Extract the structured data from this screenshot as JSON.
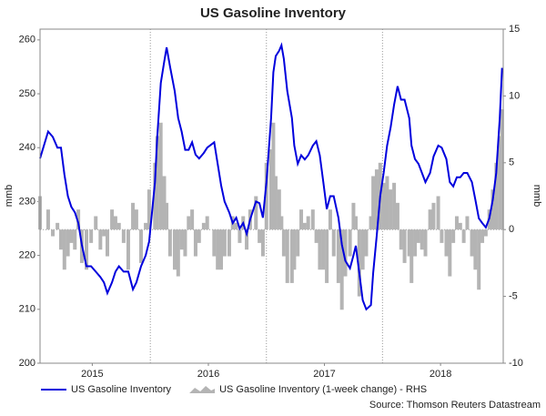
{
  "chart_data": {
    "type": "line_bar_dual",
    "title": "US Gasoline Inventory",
    "ylabel": "mmb",
    "y2label": "mmb",
    "source": "Source: Thomson Reuters Datastream",
    "x": [
      2015.05,
      2015.12,
      2015.16,
      2015.2,
      2015.23,
      2015.26,
      2015.29,
      2015.32,
      2015.35,
      2015.38,
      2015.41,
      2015.45,
      2015.49,
      2015.53,
      2015.57,
      2015.6,
      2015.63,
      2015.67,
      2015.7,
      2015.73,
      2015.77,
      2015.81,
      2015.85,
      2015.88,
      2015.92,
      2015.96,
      2015.99,
      2016.04,
      2016.06,
      2016.09,
      2016.12,
      2016.14,
      2016.17,
      2016.21,
      2016.24,
      2016.27,
      2016.3,
      2016.33,
      2016.36,
      2016.39,
      2016.42,
      2016.46,
      2016.49,
      2016.55,
      2016.58,
      2016.61,
      2016.64,
      2016.68,
      2016.71,
      2016.74,
      2016.77,
      2016.8,
      2016.83,
      2016.86,
      2016.91,
      2016.94,
      2016.97,
      2017.0,
      2017.04,
      2017.06,
      2017.08,
      2017.11,
      2017.13,
      2017.15,
      2017.18,
      2017.22,
      2017.24,
      2017.27,
      2017.3,
      2017.33,
      2017.36,
      2017.4,
      2017.43,
      2017.46,
      2017.49,
      2017.52,
      2017.55,
      2017.58,
      2017.62,
      2017.65,
      2017.68,
      2017.72,
      2017.75,
      2017.77,
      2017.8,
      2017.83,
      2017.86,
      2017.9,
      2017.92,
      2017.95,
      2017.98,
      2018.01,
      2018.04,
      2018.07,
      2018.1,
      2018.13,
      2018.16,
      2018.19,
      2018.23,
      2018.25,
      2018.28,
      2018.31,
      2018.34,
      2018.37,
      2018.41,
      2018.44,
      2018.48,
      2018.51,
      2018.55,
      2018.58,
      2018.61,
      2018.64,
      2018.67,
      2018.7,
      2018.73,
      2018.77,
      2018.8,
      2018.83,
      2018.86,
      2018.89,
      2018.92,
      2018.95,
      2018.98,
      2019.01,
      2019.03
    ],
    "series": [
      {
        "name": "US Gasoline Inventory",
        "color": "#0000dd",
        "kind": "line",
        "values": [
          238,
          243,
          242,
          240,
          240,
          235,
          231,
          229,
          228,
          226,
          222,
          218,
          218,
          217,
          216,
          215,
          213,
          215,
          217,
          218,
          217,
          217,
          213.7,
          215,
          218,
          220,
          222.6,
          233.6,
          242,
          252,
          256,
          258.6,
          255,
          250.5,
          245.5,
          243,
          239.6,
          239.6,
          241,
          238.7,
          238,
          239,
          240,
          241,
          237,
          233,
          230,
          228,
          226,
          227,
          225,
          226,
          224,
          226.7,
          230,
          229.7,
          227,
          233.6,
          245.5,
          254,
          257,
          258,
          259,
          256.5,
          250.5,
          245.5,
          240.4,
          237,
          238.6,
          237.8,
          238.6,
          240.4,
          241.2,
          238.6,
          233.6,
          228.6,
          231,
          231,
          227,
          222,
          219,
          217.6,
          220,
          221.8,
          216.8,
          211.7,
          210,
          210.8,
          216.8,
          223.5,
          231,
          235.3,
          240.4,
          243.8,
          248,
          251.4,
          248.9,
          248.9,
          245.5,
          240.4,
          237.9,
          237,
          235.3,
          233.6,
          235.3,
          238.4,
          240.4,
          240,
          237.9,
          233.6,
          232.8,
          234.5,
          234.5,
          235.3,
          235.3,
          233.6,
          230.3,
          226.9,
          226,
          225.2,
          226.9,
          230.3,
          235.3,
          245.5,
          254.8
        ]
      },
      {
        "name": "US Gasoline Inventory (1-week change) - RHS",
        "color": "#b4b4b4",
        "kind": "bar",
        "axis": "y2",
        "values": [
          2.5,
          1.5,
          -0.5,
          0.5,
          -1.5,
          -3,
          -2,
          -1,
          -1.5,
          1.5,
          -2.5,
          -3,
          -1,
          1,
          -1.5,
          -0.5,
          -2,
          1.5,
          1,
          0.5,
          -1,
          -3,
          2,
          1.5,
          -2.5,
          0.5,
          3,
          5,
          7,
          8,
          4,
          2,
          -2,
          -3,
          -3.5,
          -1.5,
          -2,
          1,
          1.5,
          -2,
          -1,
          0.5,
          1,
          -2,
          -3,
          -3,
          -2,
          -2,
          1,
          0.5,
          -1,
          1,
          -1.5,
          1.5,
          2.5,
          -1,
          -2,
          5,
          6,
          8,
          4,
          3,
          1,
          -2,
          -4,
          -4,
          -3,
          -2,
          1.5,
          0.5,
          1,
          1.5,
          -1,
          -3,
          -3,
          -4,
          1.5,
          -2,
          -4,
          -6,
          -3.5,
          -2,
          2,
          1,
          -5,
          -3,
          -2,
          1,
          4,
          4.5,
          5,
          3.5,
          4,
          3,
          3.5,
          2,
          -1.5,
          -2.5,
          -2,
          -4,
          -2,
          -1,
          -1.5,
          -2,
          1.5,
          2,
          2.5,
          -1,
          -2,
          -3.5,
          -1,
          1,
          0.5,
          -1,
          1,
          -2,
          -3,
          -4.5,
          -1,
          -0.5,
          1.5,
          3,
          5,
          7,
          9
        ]
      }
    ],
    "xlim": [
      2015.05,
      2019.04
    ],
    "xticks": [
      {
        "value": 2015.5,
        "label": "2015"
      },
      {
        "value": 2016.5,
        "label": "2016"
      },
      {
        "value": 2017.5,
        "label": "2017"
      },
      {
        "value": 2018.5,
        "label": "2018"
      }
    ],
    "xgrid": [
      2016,
      2017,
      2018
    ],
    "ylim": [
      200,
      262
    ],
    "yticks": [
      200,
      210,
      220,
      230,
      240,
      250,
      260
    ],
    "y2lim": [
      -10,
      15
    ],
    "y2ticks": [
      -10,
      -5,
      0,
      5,
      10,
      15
    ],
    "zero_line": true
  }
}
